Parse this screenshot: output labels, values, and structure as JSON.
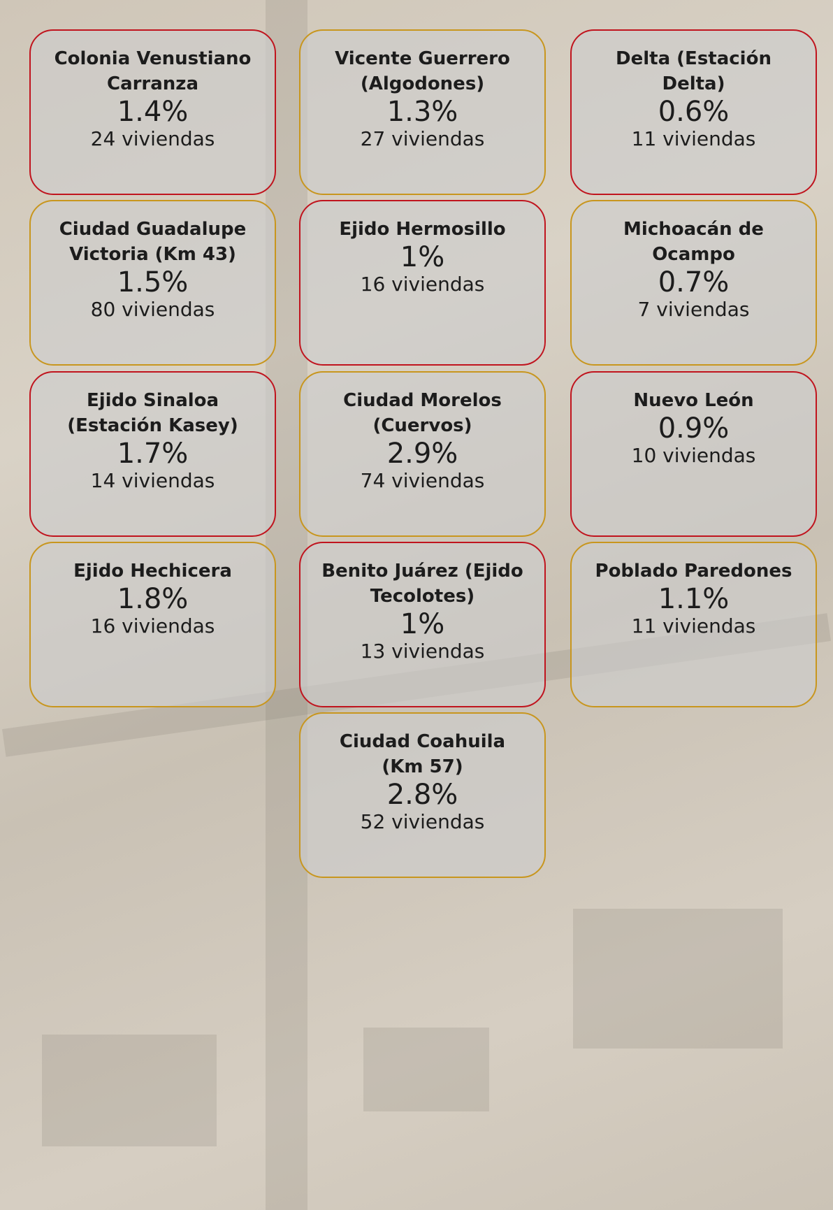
{
  "cards": [
    {
      "name": "Colonia Venustiano Carranza",
      "percent": "1.4%",
      "homes": "24 viviendas",
      "color": "#c0141e"
    },
    {
      "name": "Vicente Guerrero (Algodones)",
      "percent": "1.3%",
      "homes": "27 viviendas",
      "color": "#c8961e"
    },
    {
      "name": "Delta (Estación Delta)",
      "percent": "0.6%",
      "homes": "11 viviendas",
      "color": "#c0141e"
    },
    {
      "name": "Ciudad Guadalupe Victoria (Km 43)",
      "percent": "1.5%",
      "homes": "80 viviendas",
      "color": "#c8961e"
    },
    {
      "name": "Ejido Hermosillo",
      "percent": "1%",
      "homes": "16 viviendas",
      "color": "#c0141e"
    },
    {
      "name": "Michoacán de Ocampo",
      "percent": "0.7%",
      "homes": "7 viviendas",
      "color": "#c8961e"
    },
    {
      "name": "Ejido Sinaloa (Estación Kasey)",
      "percent": "1.7%",
      "homes": "14 viviendas",
      "color": "#c0141e"
    },
    {
      "name": "Ciudad Morelos (Cuervos)",
      "percent": "2.9%",
      "homes": "74 viviendas",
      "color": "#c8961e"
    },
    {
      "name": "Nuevo León",
      "percent": "0.9%",
      "homes": "10 viviendas",
      "color": "#c0141e"
    },
    {
      "name": "Ejido Hechicera",
      "percent": "1.8%",
      "homes": "16 viviendas",
      "color": "#c8961e"
    },
    {
      "name": "Benito Juárez (Ejido Tecolotes)",
      "percent": "1%",
      "homes": "13 viviendas",
      "color": "#c0141e"
    },
    {
      "name": "Poblado Paredones",
      "percent": "1.1%",
      "homes": "11 viviendas",
      "color": "#c8961e"
    },
    {
      "name": "Ciudad Coahuila (Km 57)",
      "percent": "2.8%",
      "homes": "52 viviendas",
      "color": "#c8961e"
    }
  ]
}
